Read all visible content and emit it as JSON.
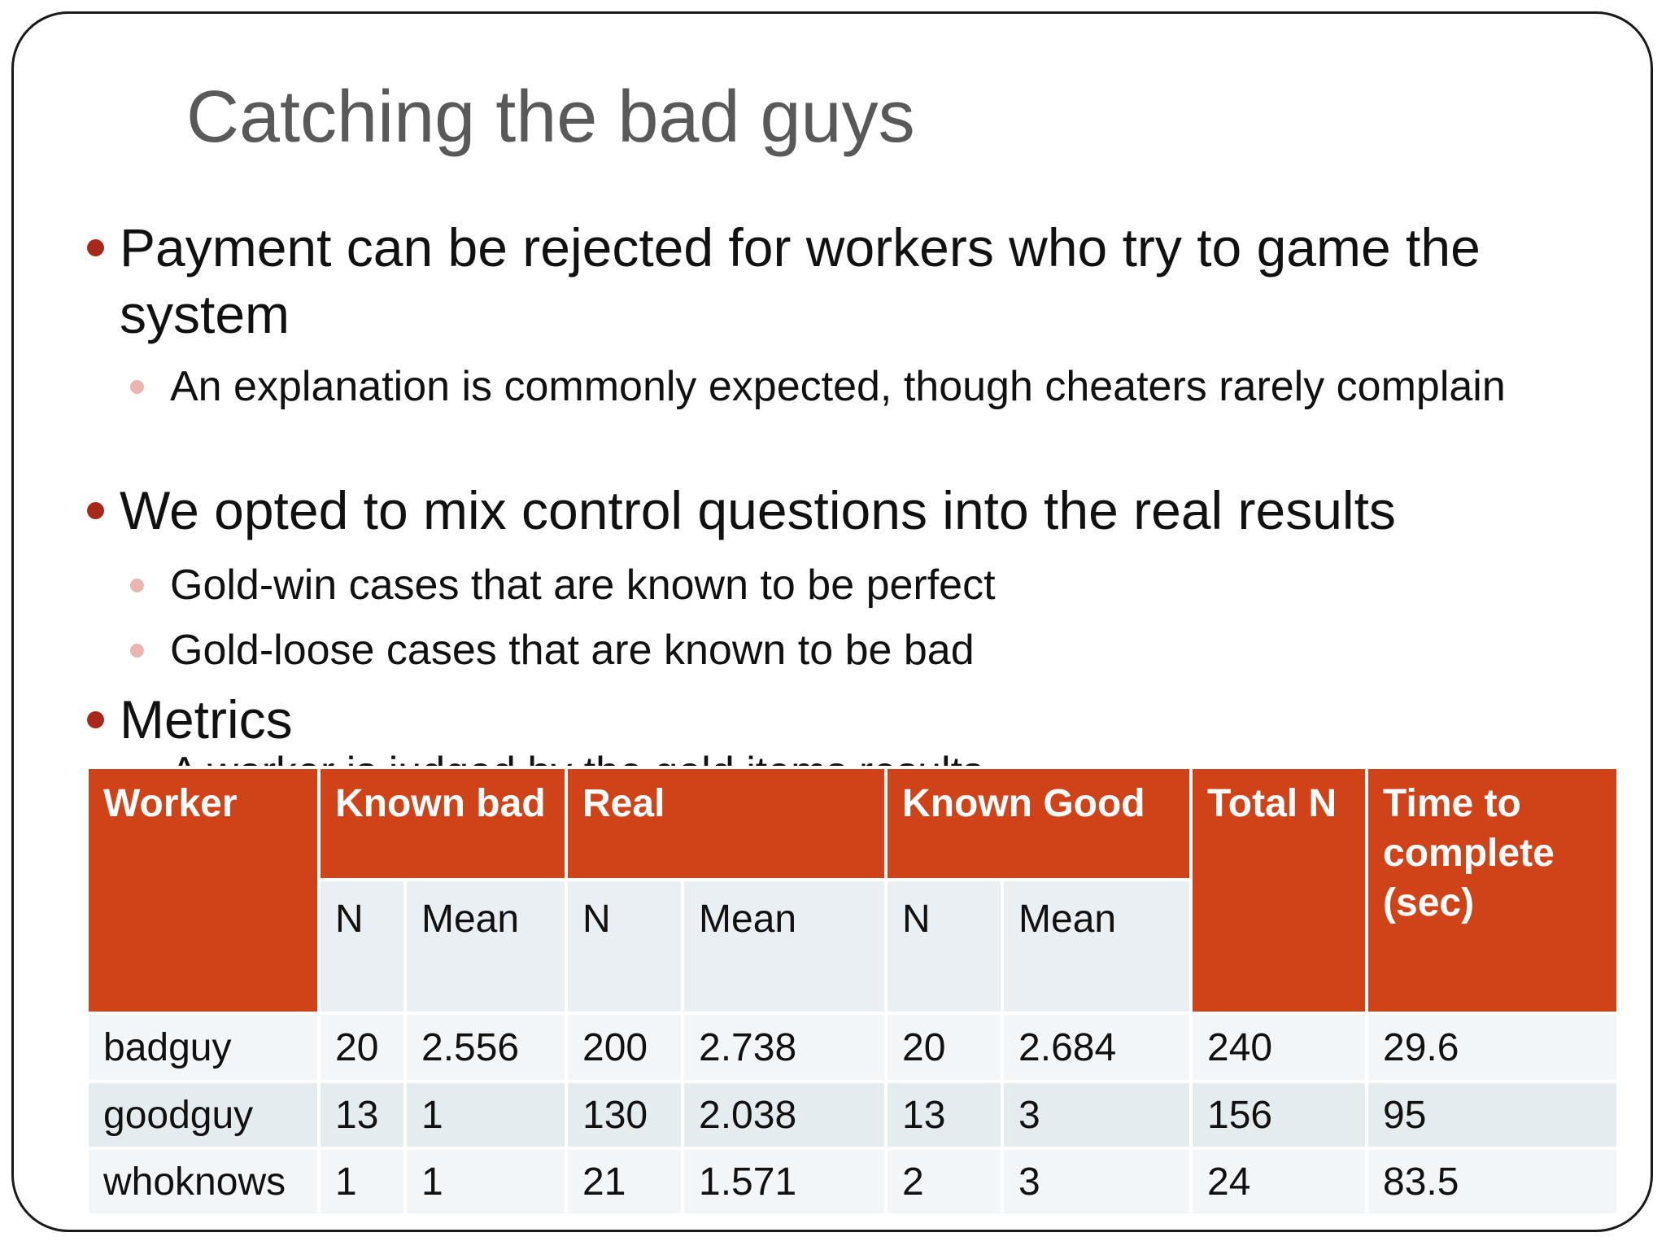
{
  "slide": {
    "title": "Catching the bad guys",
    "bullets": [
      "Payment can be rejected for workers who try to game the system",
      "We opted to mix control questions into the real results",
      "Metrics"
    ],
    "subbullets": [
      "An explanation is commonly expected, though cheaters rarely complain",
      "Gold-win cases that are known to be perfect",
      "Gold-loose cases that are known to be bad"
    ],
    "clipped_subbullet": "A worker is judged by the gold items results"
  },
  "table": {
    "headers": {
      "worker": "Worker",
      "known_bad": "Known bad",
      "real": "Real",
      "known_good": "Known Good",
      "total_n": "Total N",
      "time": "Time to complete (sec)"
    },
    "subheaders": {
      "n": "N",
      "mean": "Mean"
    },
    "rows": [
      {
        "worker": "badguy",
        "bad_n": "20",
        "bad_mean": "2.556",
        "real_n": "200",
        "real_mean": "2.738",
        "good_n": "20",
        "good_mean": "2.684",
        "total_n": "240",
        "time": "29.6"
      },
      {
        "worker": "goodguy",
        "bad_n": "13",
        "bad_mean": "1",
        "real_n": "130",
        "real_mean": "2.038",
        "good_n": "13",
        "good_mean": "3",
        "total_n": "156",
        "time": "95"
      },
      {
        "worker": "whoknows",
        "bad_n": "1",
        "bad_mean": "1",
        "real_n": "21",
        "real_mean": "1.571",
        "good_n": "2",
        "good_mean": "3",
        "total_n": "24",
        "time": "83.5"
      }
    ]
  }
}
